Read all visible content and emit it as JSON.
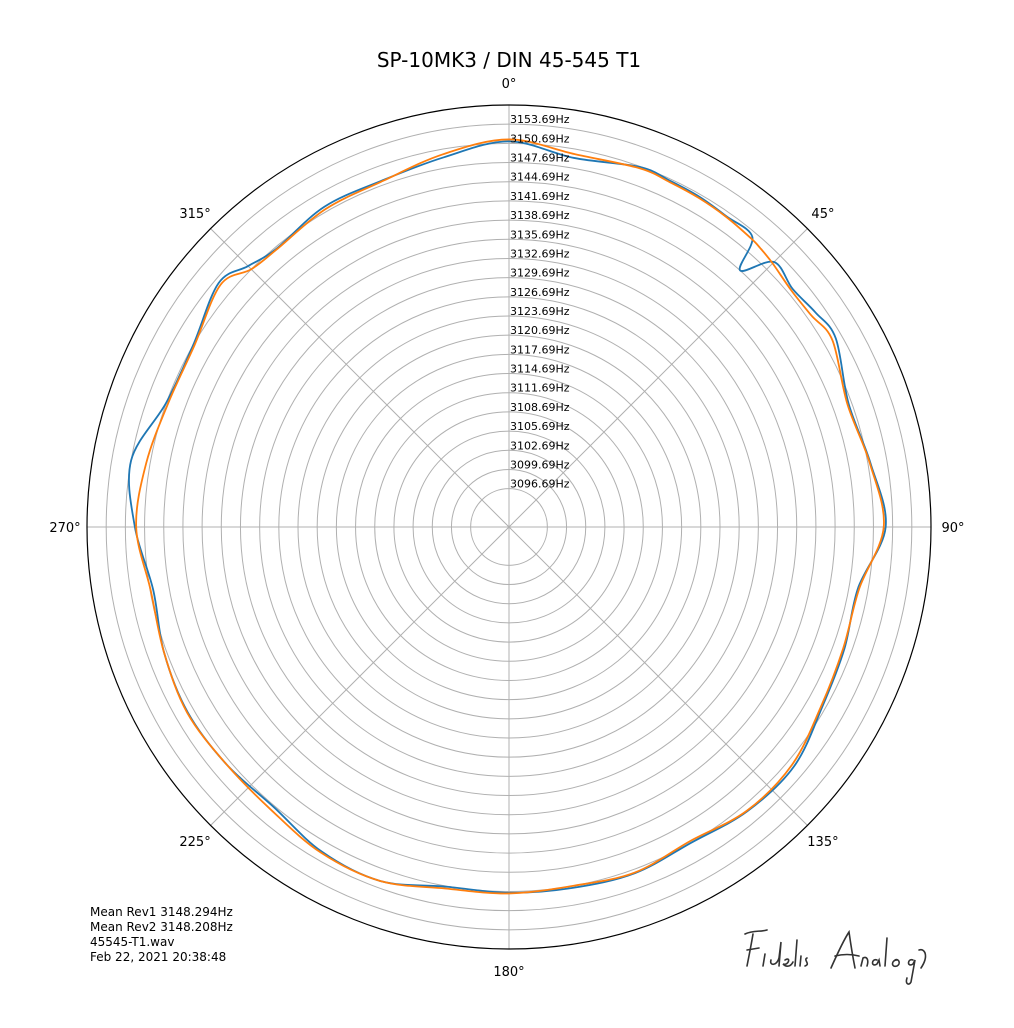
{
  "chart_data": {
    "type": "polar-line",
    "title": "SP-10MK3 / DIN 45-545 T1",
    "theta_direction": "clockwise",
    "theta_zero": "top",
    "theta_tick_labels": [
      "0°",
      "45°",
      "90°",
      "135°",
      "180°",
      "225°",
      "270°",
      "315°"
    ],
    "theta_ticks_deg": [
      0,
      45,
      90,
      135,
      180,
      225,
      270,
      315
    ],
    "r_tick_labels": [
      "3096.69Hz",
      "3099.69Hz",
      "3102.69Hz",
      "3105.69Hz",
      "3108.69Hz",
      "3111.69Hz",
      "3114.69Hz",
      "3117.69Hz",
      "3120.69Hz",
      "3123.69Hz",
      "3126.69Hz",
      "3129.69Hz",
      "3132.69Hz",
      "3135.69Hz",
      "3138.69Hz",
      "3141.69Hz",
      "3144.69Hz",
      "3147.69Hz",
      "3150.69Hz",
      "3153.69Hz"
    ],
    "r_ticks": [
      3096.69,
      3099.69,
      3102.69,
      3105.69,
      3108.69,
      3111.69,
      3114.69,
      3117.69,
      3120.69,
      3123.69,
      3126.69,
      3129.69,
      3132.69,
      3135.69,
      3138.69,
      3141.69,
      3144.69,
      3147.69,
      3150.69,
      3153.69
    ],
    "rlim": [
      3090.69,
      3156.69
    ],
    "grid": true,
    "series": [
      {
        "color": "#1f77b4",
        "theta_deg": [
          0,
          10,
          20,
          25,
          30,
          35,
          40,
          42,
          45,
          50,
          55,
          60,
          70,
          80,
          90,
          100,
          110,
          120,
          130,
          140,
          150,
          160,
          170,
          180,
          190,
          200,
          210,
          220,
          230,
          240,
          250,
          260,
          270,
          280,
          290,
          300,
          310,
          315,
          320,
          330,
          340,
          350,
          360
        ],
        "values": [
          3151.0,
          3149.3,
          3150.6,
          3150.4,
          3150.3,
          3150.0,
          3149.9,
          3144.7,
          3149.3,
          3148.6,
          3149.2,
          3149.7,
          3147.2,
          3148.1,
          3149.6,
          3146.1,
          3146.5,
          3147.2,
          3148.9,
          3148.7,
          3147.7,
          3148.3,
          3148.0,
          3147.9,
          3147.8,
          3149.6,
          3149.3,
          3147.9,
          3148.4,
          3148.7,
          3148.1,
          3147.2,
          3149.2,
          3150.7,
          3147.7,
          3147.7,
          3150.0,
          3148.4,
          3147.4,
          3148.5,
          3148.4,
          3149.4,
          3151.0
        ]
      },
      {
        "color": "#ff7f0e",
        "theta_deg": [
          0,
          10,
          20,
          25,
          30,
          35,
          40,
          42,
          45,
          50,
          55,
          60,
          70,
          80,
          90,
          100,
          110,
          120,
          130,
          140,
          150,
          160,
          170,
          180,
          190,
          200,
          210,
          220,
          230,
          240,
          250,
          260,
          270,
          280,
          290,
          300,
          310,
          315,
          320,
          330,
          340,
          350,
          360
        ],
        "values": [
          3151.3,
          3149.9,
          3150.4,
          3150.2,
          3150.1,
          3149.9,
          3149.6,
          3149.4,
          3149.0,
          3148.3,
          3148.4,
          3149.1,
          3147.0,
          3148.0,
          3149.3,
          3146.3,
          3146.3,
          3147.0,
          3148.5,
          3148.6,
          3147.4,
          3148.2,
          3147.7,
          3148.0,
          3148.1,
          3149.6,
          3149.5,
          3148.5,
          3148.4,
          3148.8,
          3148.1,
          3147.6,
          3149.0,
          3148.3,
          3147.4,
          3147.5,
          3149.6,
          3147.7,
          3147.3,
          3148.1,
          3148.3,
          3149.9,
          3151.3
        ]
      }
    ]
  },
  "footer": {
    "line1": "Mean Rev1 3148.294Hz",
    "line2": "Mean Rev2 3148.208Hz",
    "line3": "45545-T1.wav",
    "line4": "Feb 22, 2021 20:38:48"
  },
  "logo_text": "Fidelis Analog"
}
